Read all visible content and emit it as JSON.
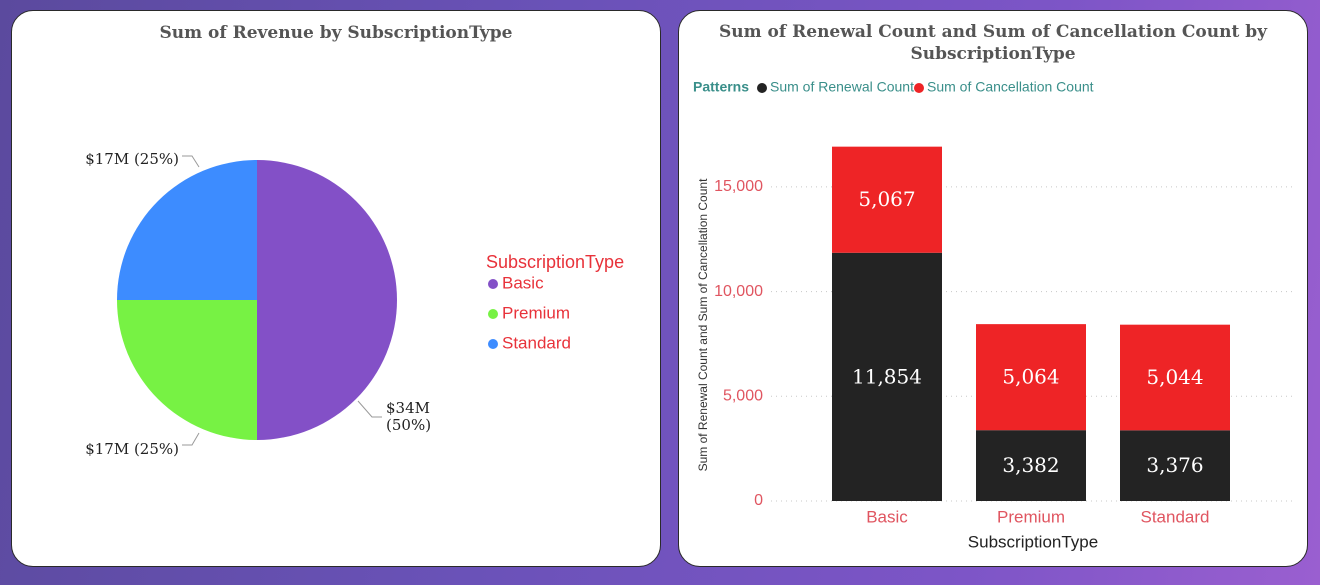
{
  "left_panel": {
    "title": "Sum of Revenue by SubscriptionType",
    "legend_title": "SubscriptionType"
  },
  "right_panel": {
    "title_line1": "Sum of Renewal Count and Sum of Cancellation Count by",
    "title_line2": "SubscriptionType",
    "legend_label": "Patterns"
  },
  "colors": {
    "basic": "#8350c7",
    "premium": "#77f244",
    "standard": "#3d8cff",
    "renewal": "#232323",
    "cancellation": "#ee2426"
  },
  "chart_data": [
    {
      "type": "pie",
      "title": "Sum of Revenue by SubscriptionType",
      "legend_title": "SubscriptionType",
      "categories": [
        "Basic",
        "Premium",
        "Standard"
      ],
      "values": [
        34,
        17,
        17
      ],
      "unit": "$M",
      "labels": [
        "$34M (50%)",
        "$17M (25%)",
        "$17M (25%)"
      ],
      "legend_position": "right"
    },
    {
      "type": "bar",
      "stacked": true,
      "title": "Sum of Renewal Count and Sum of Cancellation Count by SubscriptionType",
      "categories": [
        "Basic",
        "Premium",
        "Standard"
      ],
      "series": [
        {
          "name": "Sum of Renewal Count",
          "values": [
            11854,
            3382,
            3376
          ],
          "labels": [
            "11,854",
            "3,382",
            "3,376"
          ]
        },
        {
          "name": "Sum of Cancellation Count",
          "values": [
            5067,
            5064,
            5044
          ],
          "labels": [
            "5,067",
            "5,064",
            "5,044"
          ]
        }
      ],
      "xlabel": "SubscriptionType",
      "ylabel": "Sum of Renewal Count and Sum of Cancellation Count",
      "ylim": [
        0,
        17500
      ],
      "yticks": [
        0,
        5000,
        10000,
        15000
      ],
      "ytick_labels": [
        "0",
        "5,000",
        "10,000",
        "15,000"
      ],
      "grid": true,
      "legend_position": "top-left"
    }
  ]
}
